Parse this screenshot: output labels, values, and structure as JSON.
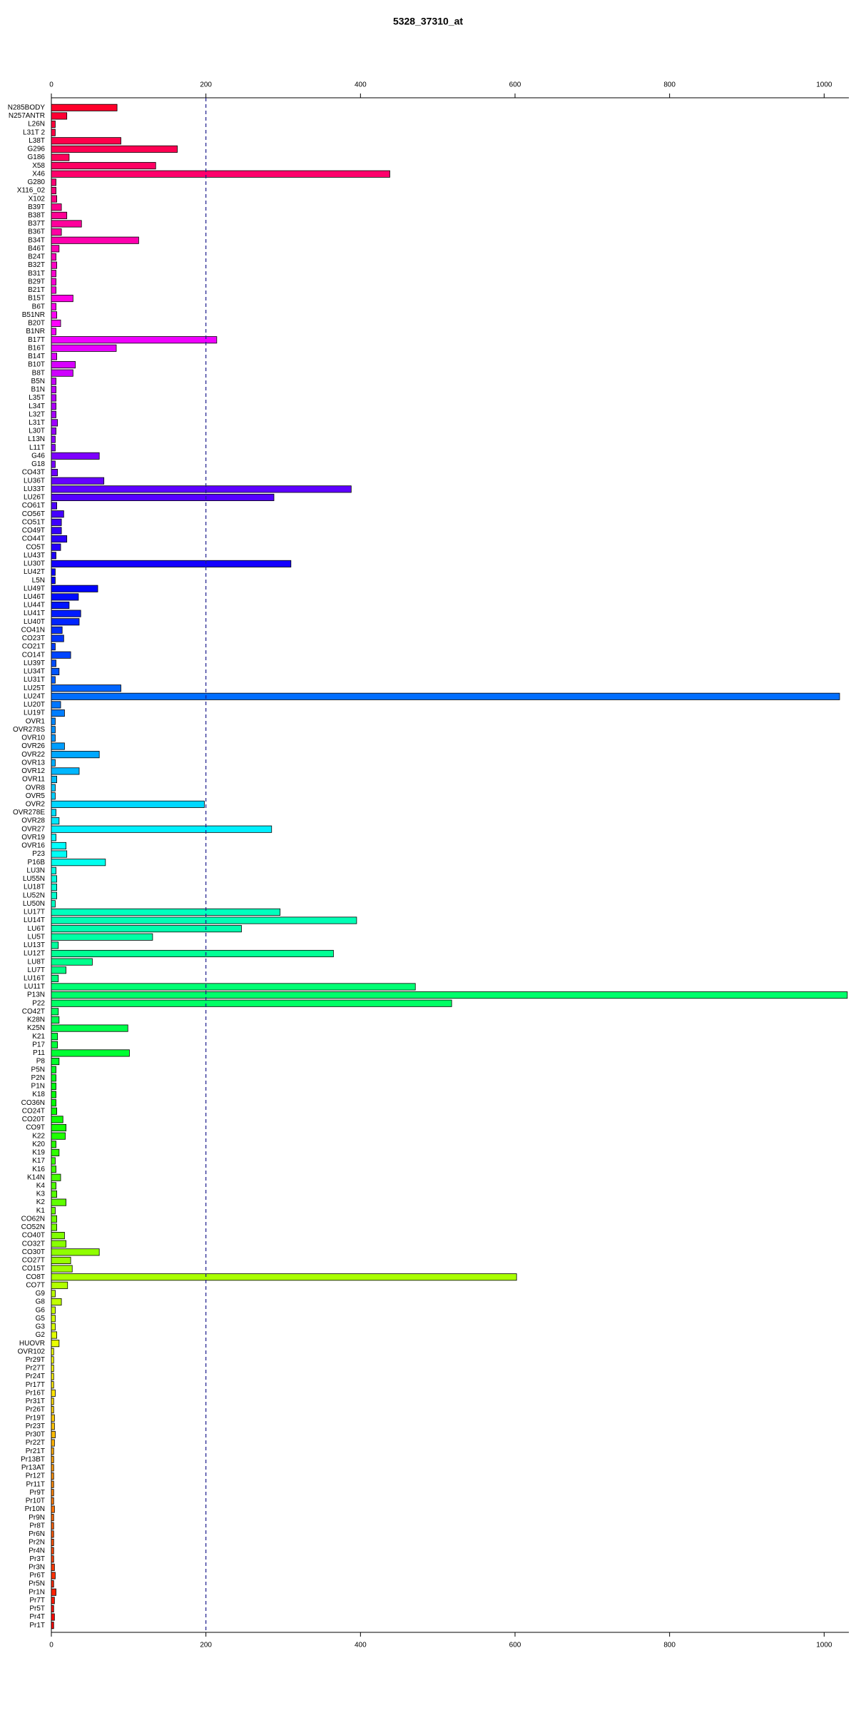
{
  "chart_data": {
    "type": "barh",
    "title": "5328_37310_at",
    "categories": [
      "N285BODY",
      "N257ANTR",
      "L26N",
      "L31T 2",
      "L38T",
      "G296",
      "G186",
      "X58",
      "X46",
      "G280",
      "X116_02",
      "X102",
      "B39T",
      "B38T",
      "B37T",
      "B36T",
      "B34T",
      "B46T",
      "B24T",
      "B32T",
      "B31T",
      "B29T",
      "B21T",
      "B15T",
      "B6T",
      "B51NR",
      "B20T",
      "B1NR",
      "B17T",
      "B16T",
      "B14T",
      "B10T",
      "B8T",
      "B5N",
      "B1N",
      "L35T",
      "L34T",
      "L32T",
      "L31T",
      "L30T",
      "L13N",
      "L11T",
      "G46",
      "G18",
      "CO43T",
      "LU36T",
      "LU33T",
      "LU26T",
      "CO61T",
      "CO56T",
      "CO51T",
      "CO49T",
      "CO44T",
      "CO5T",
      "LU43T",
      "LU30T",
      "LU42T",
      "L5N",
      "LU49T",
      "LU46T",
      "LU44T",
      "LU41T",
      "LU40T",
      "CO41N",
      "CO23T",
      "CO21T",
      "CO14T",
      "LU39T",
      "LU34T",
      "LU31T",
      "LU25T",
      "LU24T",
      "LU20T",
      "LU19T",
      "OVR1",
      "OVR278S",
      "OVR10",
      "OVR26",
      "OVR22",
      "OVR13",
      "OVR12",
      "OVR11",
      "OVR8",
      "OVR5",
      "OVR2",
      "OVR278E",
      "OVR28",
      "OVR27",
      "OVR19",
      "OVR16",
      "P23",
      "P16B",
      "LU3N",
      "LU55N",
      "LU18T",
      "LU52N",
      "LU50N",
      "LU17T",
      "LU14T",
      "LU6T",
      "LU5T",
      "LU13T",
      "LU12T",
      "LU8T",
      "LU7T",
      "LU16T",
      "LU11T",
      "P13N",
      "P22",
      "CO42T",
      "K28N",
      "K25N",
      "K21",
      "P17",
      "P11",
      "P8",
      "P5N",
      "P2N",
      "P1N",
      "K18",
      "CO36N",
      "CO24T",
      "CO20T",
      "CO9T",
      "K22",
      "K20",
      "K19",
      "K17",
      "K16",
      "K14N",
      "K4",
      "K3",
      "K2",
      "K1",
      "CO62N",
      "CO52N",
      "CO40T",
      "CO32T",
      "CO30T",
      "CO27T",
      "CO15T",
      "CO8T",
      "CO7T",
      "G9",
      "G8",
      "G6",
      "G5",
      "G3",
      "G2",
      "HUOVR",
      "OVR102",
      "Pr29T",
      "Pr27T",
      "Pr24T",
      "Pr17T",
      "Pr16T",
      "Pr31T",
      "Pr26T",
      "Pr19T",
      "Pr23T",
      "Pr30T",
      "Pr22T",
      "Pr21T",
      "Pr13BT",
      "Pr13AT",
      "Pr12T",
      "Pr11T",
      "Pr9T",
      "Pr10T",
      "Pr10N",
      "Pr9N",
      "Pr8T",
      "Pr6N",
      "Pr2N",
      "Pr4N",
      "Pr3T",
      "Pr3N",
      "Pr6T",
      "Pr5N",
      "Pr1N",
      "Pr7T",
      "Pr5T",
      "Pr4T",
      "Pr1T"
    ],
    "values": [
      85,
      20,
      5,
      5,
      90,
      163,
      23,
      135,
      438,
      6,
      6,
      7,
      13,
      20,
      39,
      13,
      113,
      10,
      6,
      7,
      6,
      6,
      6,
      28,
      6,
      7,
      12,
      6,
      214,
      84,
      7,
      31,
      28,
      6,
      6,
      6,
      6,
      6,
      8,
      6,
      5,
      5,
      62,
      5,
      8,
      68,
      388,
      288,
      7,
      16,
      13,
      13,
      20,
      12,
      6,
      310,
      5,
      5,
      60,
      35,
      23,
      38,
      36,
      14,
      16,
      5,
      25,
      6,
      10,
      5,
      90,
      1020,
      12,
      17,
      5,
      5,
      5,
      17,
      62,
      5,
      36,
      7,
      5,
      5,
      198,
      6,
      10,
      285,
      6,
      19,
      20,
      70,
      6,
      7,
      7,
      7,
      5,
      296,
      395,
      246,
      131,
      9,
      365,
      53,
      19,
      9,
      471,
      1030,
      518,
      9,
      10,
      99,
      8,
      8,
      101,
      10,
      6,
      6,
      6,
      6,
      6,
      7,
      15,
      19,
      18,
      6,
      10,
      5,
      6,
      12,
      6,
      7,
      19,
      5,
      7,
      7,
      17,
      19,
      62,
      25,
      27,
      602,
      21,
      5,
      13,
      5,
      5,
      5,
      7,
      10,
      3,
      3,
      3,
      3,
      3,
      5,
      3,
      3,
      4,
      4,
      5,
      4,
      3,
      3,
      3,
      3,
      3,
      3,
      3,
      4,
      3,
      3,
      3,
      3,
      3,
      3,
      4,
      5,
      3,
      6,
      4,
      3,
      4,
      3
    ],
    "color_scale": "rainbow",
    "xlim": [
      0,
      1032
    ],
    "xticks": [
      0,
      200,
      400,
      600,
      800,
      1000
    ],
    "reference_line": 200
  }
}
